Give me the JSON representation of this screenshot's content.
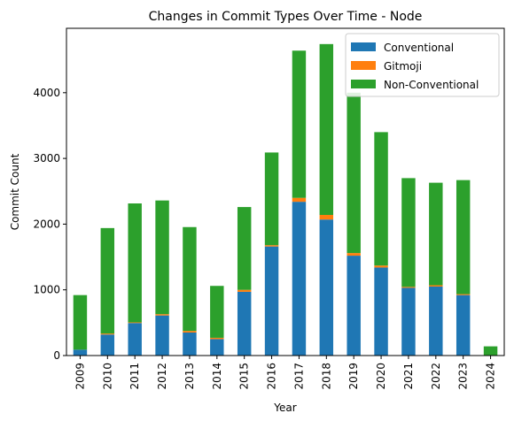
{
  "chart_data": {
    "type": "bar",
    "stacked": true,
    "title": "Changes in Commit Types Over Time - Node",
    "xlabel": "Year",
    "ylabel": "Commit Count",
    "ylim": [
      0,
      4980
    ],
    "yticks": [
      0,
      1000,
      2000,
      3000,
      4000
    ],
    "grid": false,
    "legend_position": "top-right",
    "categories": [
      "2009",
      "2010",
      "2011",
      "2012",
      "2013",
      "2014",
      "2015",
      "2016",
      "2017",
      "2018",
      "2019",
      "2020",
      "2021",
      "2022",
      "2023",
      "2024"
    ],
    "series": [
      {
        "name": "Conventional",
        "color": "#1f77b4",
        "values": [
          90,
          320,
          495,
          610,
          350,
          250,
          970,
          1660,
          2340,
          2070,
          1520,
          1340,
          1030,
          1050,
          920,
          0
        ]
      },
      {
        "name": "Gitmoji",
        "color": "#ff7f0e",
        "values": [
          0,
          15,
          10,
          20,
          25,
          20,
          30,
          20,
          60,
          70,
          40,
          30,
          15,
          20,
          15,
          0
        ]
      },
      {
        "name": "Non-Conventional",
        "color": "#2ca02c",
        "values": [
          830,
          1605,
          1810,
          1730,
          1580,
          790,
          1260,
          1410,
          2240,
          2600,
          2440,
          2030,
          1655,
          1560,
          1735,
          140
        ]
      }
    ]
  }
}
